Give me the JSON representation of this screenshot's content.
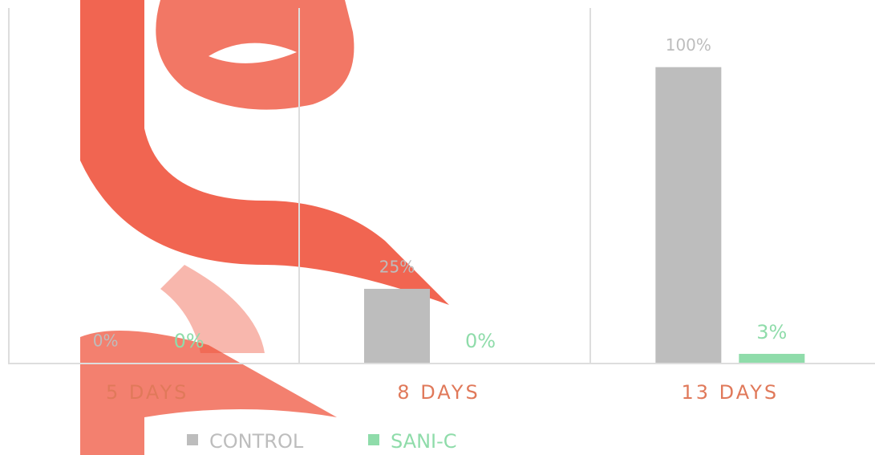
{
  "chart_data": {
    "type": "bar",
    "categories": [
      "5 DAYS",
      "8 DAYS",
      "13 DAYS"
    ],
    "series": [
      {
        "name": "CONTROL",
        "color": "#bdbdbd",
        "values": [
          0,
          25,
          100
        ],
        "value_labels": [
          "0%",
          "25%",
          "100%"
        ]
      },
      {
        "name": "SANI-C",
        "color": "#8fdcaa",
        "values": [
          0,
          0,
          3
        ],
        "value_labels": [
          "0%",
          "0%",
          "3%"
        ]
      }
    ],
    "ylim": [
      0,
      120
    ],
    "category_color": "#e0795a"
  }
}
